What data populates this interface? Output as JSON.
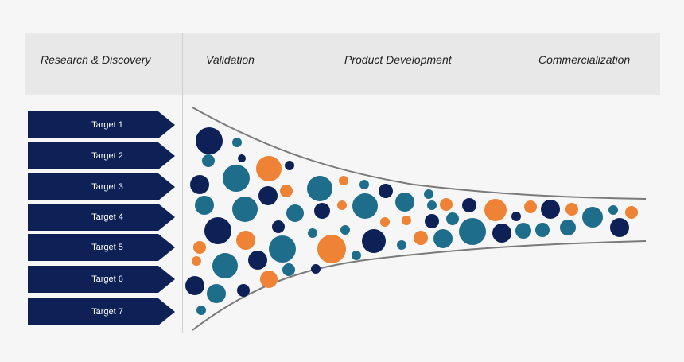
{
  "stages": [
    "Research & Discovery",
    "Validation",
    "Product Development",
    "Commercialization"
  ],
  "targets": [
    "Target 1",
    "Target 2",
    "Target 3",
    "Target 4",
    "Target 5",
    "Target 6",
    "Target 7"
  ],
  "colors": {
    "navy": "#0d2157",
    "teal": "#1e6e8b",
    "orange": "#ee8235",
    "header_bg": "#e8e8e8",
    "funnel_line": "#7a7a7a"
  }
}
